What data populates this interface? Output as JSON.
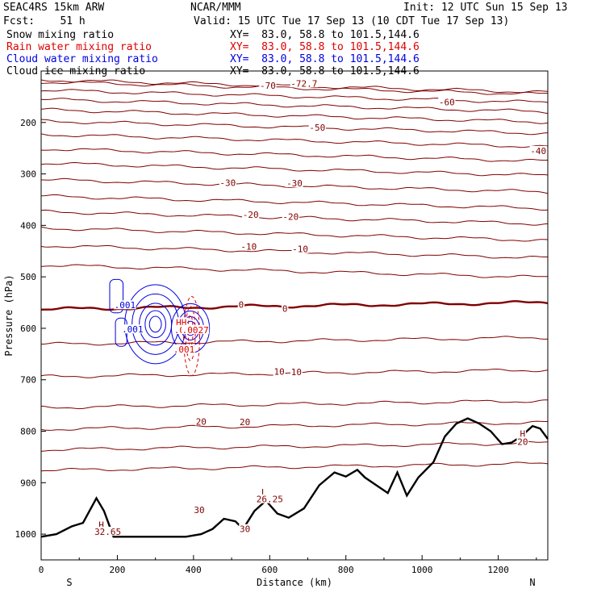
{
  "header": {
    "model": "SEAC4RS 15km ARW",
    "org": "NCAR/MMM",
    "init": "Init: 12 UTC Sun 15 Sep 13",
    "fcst": "Fcst:    51 h",
    "valid": "Valid: 15 UTC Tue 17 Sep 13 (10 CDT Tue 17 Sep 13)",
    "fields": [
      {
        "label": "Snow mixing ratio",
        "xy": "XY=  83.0, 58.8 to 101.5,144.6",
        "color": "#000000"
      },
      {
        "label": "Rain water mixing ratio",
        "xy": "XY=  83.0, 58.8 to 101.5,144.6",
        "color": "#e00000"
      },
      {
        "label": "Cloud water mixing ratio",
        "xy": "XY=  83.0, 58.8 to 101.5,144.6",
        "color": "#0000e0"
      },
      {
        "label": "Cloud ice mixing ratio",
        "xy": "XY=  83.0, 58.8 to 101.5,144.6",
        "color": "#000000"
      }
    ]
  },
  "colors": {
    "temperature": "#800000",
    "terrain": "#000000",
    "cloud_water": "#0000e0",
    "rain_water": "#e00000",
    "axes": "#000000"
  },
  "chart_data": {
    "type": "contour-cross-section",
    "xlabel": "Distance (km)",
    "ylabel": "Pressure (hPa)",
    "xlim": [
      0,
      1330
    ],
    "ylim": [
      1050,
      100
    ],
    "xticks": [
      0,
      200,
      400,
      600,
      800,
      1000,
      1200
    ],
    "yticks": [
      200,
      300,
      400,
      500,
      600,
      700,
      800,
      900,
      1000
    ],
    "end_labels": {
      "left": "S",
      "right": "N"
    },
    "temperature_contours": [
      {
        "value": -72.7,
        "p": 128
      },
      {
        "value": -70,
        "p": 132
      },
      {
        "value": -65,
        "p": 148
      },
      {
        "value": -60,
        "p": 166
      },
      {
        "value": -55,
        "p": 186
      },
      {
        "value": -50,
        "p": 208
      },
      {
        "value": -45,
        "p": 234
      },
      {
        "value": -40,
        "p": 262
      },
      {
        "value": -35,
        "p": 290
      },
      {
        "value": -30,
        "p": 322
      },
      {
        "value": -25,
        "p": 354
      },
      {
        "value": -20,
        "p": 384
      },
      {
        "value": -15,
        "p": 416
      },
      {
        "value": -10,
        "p": 450
      },
      {
        "value": -5,
        "p": 488
      },
      {
        "value": 0,
        "p": 557
      },
      {
        "value": 5,
        "p": 625
      },
      {
        "value": 10,
        "p": 688
      },
      {
        "value": 15,
        "p": 748
      },
      {
        "value": 20,
        "p": 790
      },
      {
        "value": 25,
        "p": 830
      },
      {
        "value": 30,
        "p": 870
      }
    ],
    "temperature_labels": [
      {
        "text": "-72.7",
        "x": 690,
        "p": 124
      },
      {
        "text": "-70",
        "x": 595,
        "p": 128
      },
      {
        "text": "-60",
        "x": 1065,
        "p": 160
      },
      {
        "text": "-50",
        "x": 725,
        "p": 210
      },
      {
        "text": "-40",
        "x": 1305,
        "p": 255
      },
      {
        "text": "-30",
        "x": 490,
        "p": 317
      },
      {
        "text": "-30",
        "x": 665,
        "p": 318
      },
      {
        "text": "-20",
        "x": 550,
        "p": 379
      },
      {
        "text": "-20",
        "x": 655,
        "p": 383
      },
      {
        "text": "-10",
        "x": 545,
        "p": 441
      },
      {
        "text": "-10",
        "x": 680,
        "p": 446
      },
      {
        "text": "0",
        "x": 525,
        "p": 554
      },
      {
        "text": "0",
        "x": 640,
        "p": 562
      },
      {
        "text": "10",
        "x": 625,
        "p": 684
      },
      {
        "text": "10",
        "x": 670,
        "p": 685
      },
      {
        "text": "20",
        "x": 420,
        "p": 781
      },
      {
        "text": "20",
        "x": 535,
        "p": 782
      },
      {
        "text": "30",
        "x": 415,
        "p": 953
      },
      {
        "text": "30",
        "x": 535,
        "p": 990
      }
    ],
    "terrain": {
      "x": [
        0,
        40,
        80,
        110,
        145,
        165,
        190,
        250,
        330,
        380,
        420,
        450,
        480,
        510,
        530,
        560,
        590,
        620,
        650,
        690,
        730,
        770,
        800,
        830,
        850,
        880,
        910,
        935,
        960,
        990,
        1030,
        1060,
        1090,
        1120,
        1150,
        1180,
        1210,
        1235,
        1260,
        1290,
        1310,
        1330
      ],
      "p": [
        1005,
        1000,
        985,
        978,
        930,
        955,
        1005,
        1005,
        1005,
        1005,
        1000,
        990,
        970,
        975,
        990,
        955,
        935,
        960,
        968,
        950,
        905,
        880,
        888,
        875,
        890,
        905,
        920,
        880,
        925,
        890,
        860,
        810,
        785,
        775,
        785,
        800,
        825,
        822,
        810,
        790,
        795,
        815
      ]
    },
    "extrema": [
      {
        "text": "H",
        "x": 158,
        "p": 982
      },
      {
        "text": "32.65",
        "x": 175,
        "p": 995
      },
      {
        "text": "L",
        "x": 585,
        "p": 918
      },
      {
        "text": "26.25",
        "x": 600,
        "p": 932
      },
      {
        "text": "H",
        "x": 1264,
        "p": 805
      },
      {
        "text": "20",
        "x": 1264,
        "p": 820
      }
    ],
    "cloud_water_labels": [
      {
        "text": ".001",
        "x": 220,
        "p": 555
      },
      {
        "text": ".001",
        "x": 240,
        "p": 602
      },
      {
        "text": ".002",
        "x": 380,
        "p": 603
      }
    ],
    "rain_water_labels": [
      {
        "text": "HH",
        "x": 368,
        "p": 588
      },
      {
        "text": ".00",
        "x": 370,
        "p": 603
      },
      {
        "text": ".0027",
        "x": 405,
        "p": 603
      },
      {
        "text": ".001",
        "x": 375,
        "p": 641
      }
    ]
  }
}
